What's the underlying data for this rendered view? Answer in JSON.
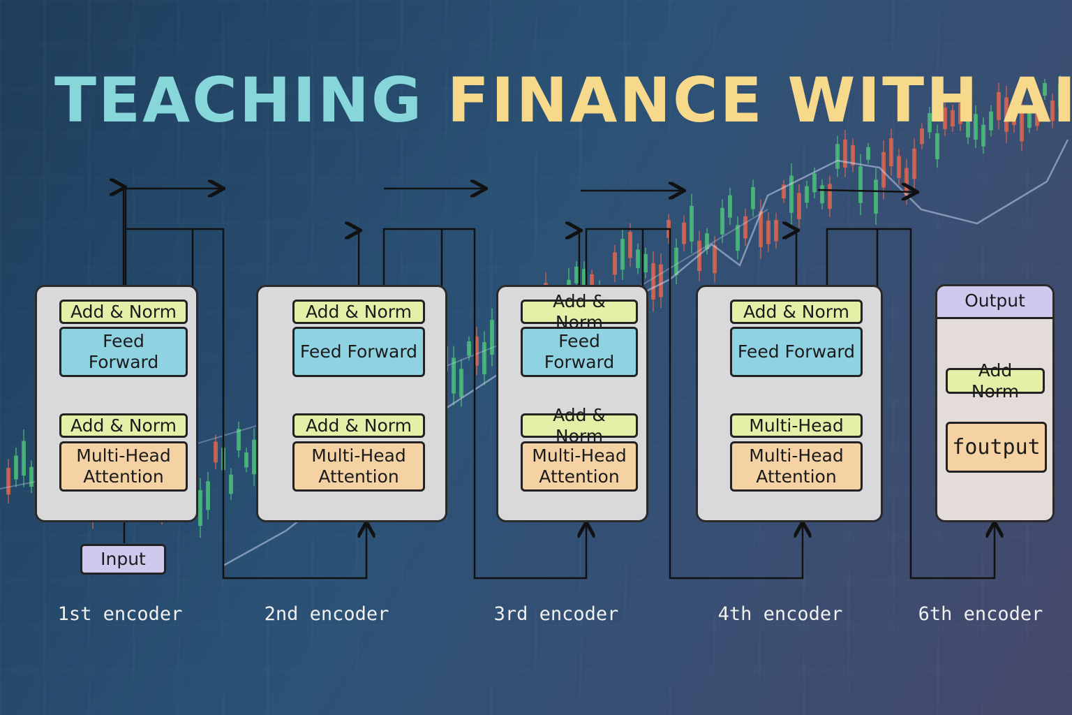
{
  "title": {
    "part1": "TEACHING",
    "part2": "FINANCE WITH AI"
  },
  "encoders": [
    {
      "label": "1st encoder",
      "blocks": [
        "Add & Norm",
        "Feed Forward",
        "Add & Norm",
        "Multi-Head Attention"
      ]
    },
    {
      "label": "2nd encoder",
      "blocks": [
        "Add & Norm",
        "Feed Forward",
        "Add & Norm",
        "Multi-Head Attention"
      ]
    },
    {
      "label": "3rd encoder",
      "blocks": [
        "Add & Norm",
        "Feed Forward",
        "Add & Norm",
        "Multi-Head Attention"
      ]
    },
    {
      "label": "4th encoder",
      "blocks": [
        "Add & Norm",
        "Feed Forward",
        "Multi-Head",
        "Multi-Head Attention"
      ]
    }
  ],
  "input": "Input",
  "output": {
    "label": "6th encoder",
    "title": "Output",
    "blocks": [
      "Add  Norm",
      "foutput"
    ]
  }
}
